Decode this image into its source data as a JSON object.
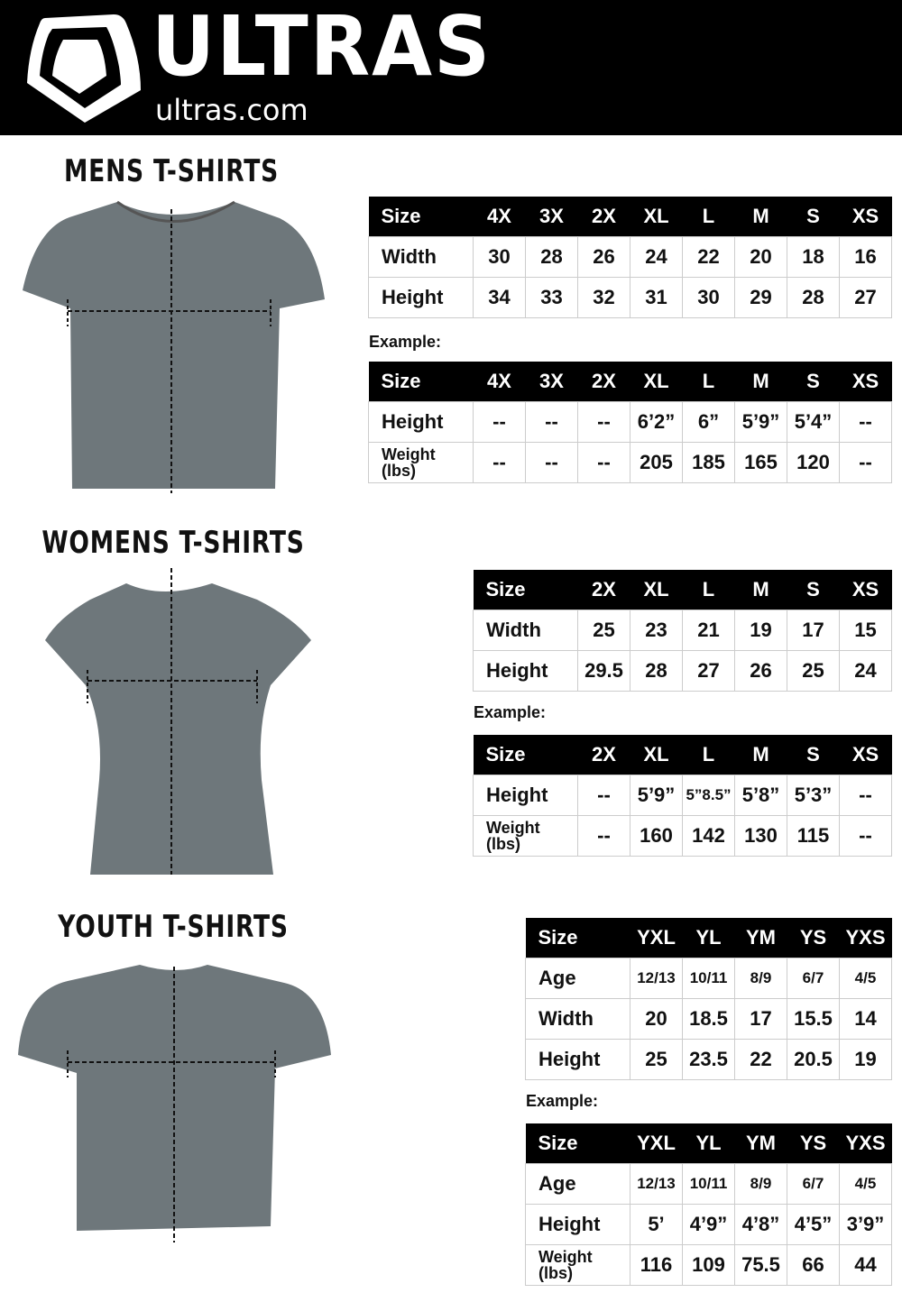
{
  "header": {
    "brand": "ULTRAS",
    "domain": "ultras.com",
    "background": "#000000"
  },
  "sections": [
    {
      "id": "mens",
      "title": "MENS T-SHIRTS",
      "example_label": "Example:",
      "size_table": {
        "headers": [
          "Size",
          "4X",
          "3X",
          "2X",
          "XL",
          "L",
          "M",
          "S",
          "XS"
        ],
        "rows": [
          [
            "Width",
            "30",
            "28",
            "26",
            "24",
            "22",
            "20",
            "18",
            "16"
          ],
          [
            "Height",
            "34",
            "33",
            "32",
            "31",
            "30",
            "29",
            "28",
            "27"
          ]
        ]
      },
      "example_table": {
        "headers": [
          "Size",
          "4X",
          "3X",
          "2X",
          "XL",
          "L",
          "M",
          "S",
          "XS"
        ],
        "rows": [
          [
            "Height",
            "--",
            "--",
            "--",
            "6’2”",
            "6”",
            "5’9”",
            "5’4”",
            "--"
          ],
          [
            "Weight (lbs)",
            "--",
            "--",
            "--",
            "205",
            "185",
            "165",
            "120",
            "--"
          ]
        ]
      }
    },
    {
      "id": "womens",
      "title": "WOMENS T-SHIRTS",
      "example_label": "Example:",
      "size_table": {
        "headers": [
          "Size",
          "2X",
          "XL",
          "L",
          "M",
          "S",
          "XS"
        ],
        "rows": [
          [
            "Width",
            "25",
            "23",
            "21",
            "19",
            "17",
            "15"
          ],
          [
            "Height",
            "29.5",
            "28",
            "27",
            "26",
            "25",
            "24"
          ]
        ]
      },
      "example_table": {
        "headers": [
          "Size",
          "2X",
          "XL",
          "L",
          "M",
          "S",
          "XS"
        ],
        "rows": [
          [
            "Height",
            "--",
            "5’9”",
            "5”8.5”",
            "5’8”",
            "5’3”",
            "--"
          ],
          [
            "Weight (lbs)",
            "--",
            "160",
            "142",
            "130",
            "115",
            "--"
          ]
        ]
      }
    },
    {
      "id": "youth",
      "title": "YOUTH T-SHIRTS",
      "example_label": "Example:",
      "size_table": {
        "headers": [
          "Size",
          "YXL",
          "YL",
          "YM",
          "YS",
          "YXS"
        ],
        "rows": [
          [
            "Age",
            "12/13",
            "10/11",
            "8/9",
            "6/7",
            "4/5"
          ],
          [
            "Width",
            "20",
            "18.5",
            "17",
            "15.5",
            "14"
          ],
          [
            "Height",
            "25",
            "23.5",
            "22",
            "20.5",
            "19"
          ]
        ]
      },
      "example_table": {
        "headers": [
          "Size",
          "YXL",
          "YL",
          "YM",
          "YS",
          "YXS"
        ],
        "rows": [
          [
            "Age",
            "12/13",
            "10/11",
            "8/9",
            "6/7",
            "4/5"
          ],
          [
            "Height",
            "5’",
            "4’9”",
            "4’8”",
            "4’5”",
            "3’9”"
          ],
          [
            "Weight (lbs)",
            "116",
            "109",
            "75.5",
            "66",
            "44"
          ]
        ]
      }
    }
  ],
  "colors": {
    "shirt": "#6e777b",
    "table_header": "#000000"
  }
}
